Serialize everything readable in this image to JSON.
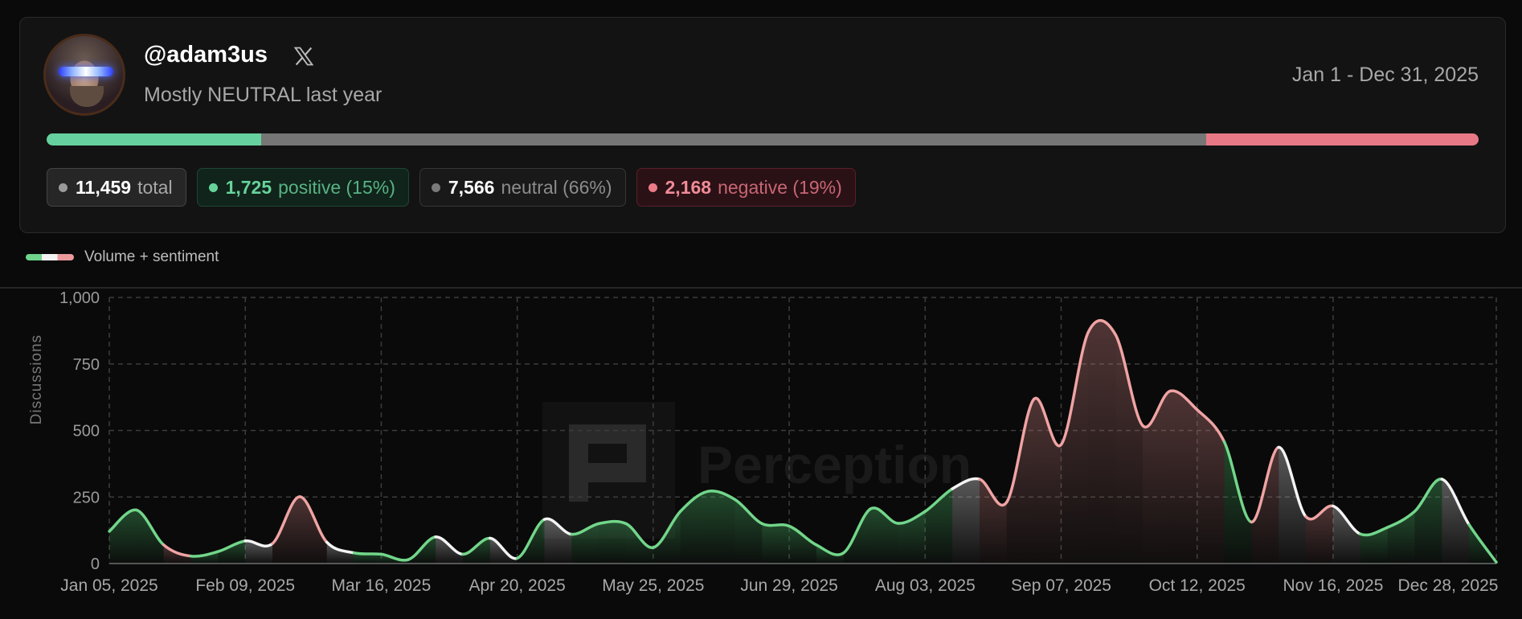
{
  "profile": {
    "handle": "@adam3us",
    "platform_icon": "x-logo-icon",
    "summary": "Mostly NEUTRAL last year",
    "date_range": "Jan 1 - Dec 31, 2025"
  },
  "sentiment_bar": {
    "positive_pct": 15,
    "neutral_pct": 66,
    "negative_pct": 19,
    "colors": {
      "positive": "#66d19e",
      "neutral": "#767676",
      "negative": "#e87886"
    }
  },
  "stats": {
    "total": {
      "value": "11,459",
      "label": "total"
    },
    "positive": {
      "value": "1,725",
      "label": "positive (15%)"
    },
    "neutral": {
      "value": "7,566",
      "label": "neutral (66%)"
    },
    "negative": {
      "value": "2,168",
      "label": "negative (19%)"
    }
  },
  "legend": {
    "label": "Volume + sentiment"
  },
  "watermark": "Perception",
  "chart_data": {
    "type": "area",
    "title": "",
    "xlabel": "",
    "ylabel": "Discussions",
    "ylim": [
      0,
      1000
    ],
    "yticks": [
      "0",
      "250",
      "500",
      "750",
      "1,000"
    ],
    "ytick_values": [
      0,
      250,
      500,
      750,
      1000
    ],
    "grid": true,
    "x_tick_indices": [
      0,
      5,
      10,
      15,
      20,
      25,
      30,
      35,
      40,
      45,
      51
    ],
    "x_tick_labels": [
      "Jan 05, 2025",
      "Feb 09, 2025",
      "Mar 16, 2025",
      "Apr 20, 2025",
      "May 25, 2025",
      "Jun 29, 2025",
      "Aug 03, 2025",
      "Sep 07, 2025",
      "Oct 12, 2025",
      "Nov 16, 2025",
      "Dec 28, 2025"
    ],
    "values": [
      121,
      201,
      70,
      28,
      45,
      85,
      75,
      251,
      80,
      40,
      35,
      15,
      100,
      35,
      95,
      20,
      166,
      110,
      150,
      150,
      60,
      196,
      271,
      241,
      150,
      141,
      70,
      40,
      206,
      151,
      196,
      281,
      317,
      231,
      618,
      447,
      870,
      860,
      518,
      648,
      578,
      457,
      156,
      437,
      176,
      216,
      111,
      136,
      196,
      317,
      146,
      5
    ],
    "segment_sentiment": [
      "pos",
      "pos",
      "neg",
      "pos",
      "pos",
      "neu",
      "neg",
      "neg",
      "neu",
      "pos",
      "pos",
      "pos",
      "neu",
      "pos",
      "neu",
      "pos",
      "neu",
      "pos",
      "pos",
      "pos",
      "pos",
      "pos",
      "pos",
      "pos",
      "pos",
      "pos",
      "pos",
      "pos",
      "pos",
      "pos",
      "pos",
      "neu",
      "neg",
      "neg",
      "neg",
      "neg",
      "neg",
      "neg",
      "neg",
      "neg",
      "neg",
      "pos",
      "neg",
      "neu",
      "neg",
      "neu",
      "pos",
      "pos",
      "pos",
      "neu",
      "pos"
    ],
    "series_colors": {
      "pos": "#72d68a",
      "neu": "#f4f4f4",
      "neg": "#f0a3a3"
    }
  }
}
